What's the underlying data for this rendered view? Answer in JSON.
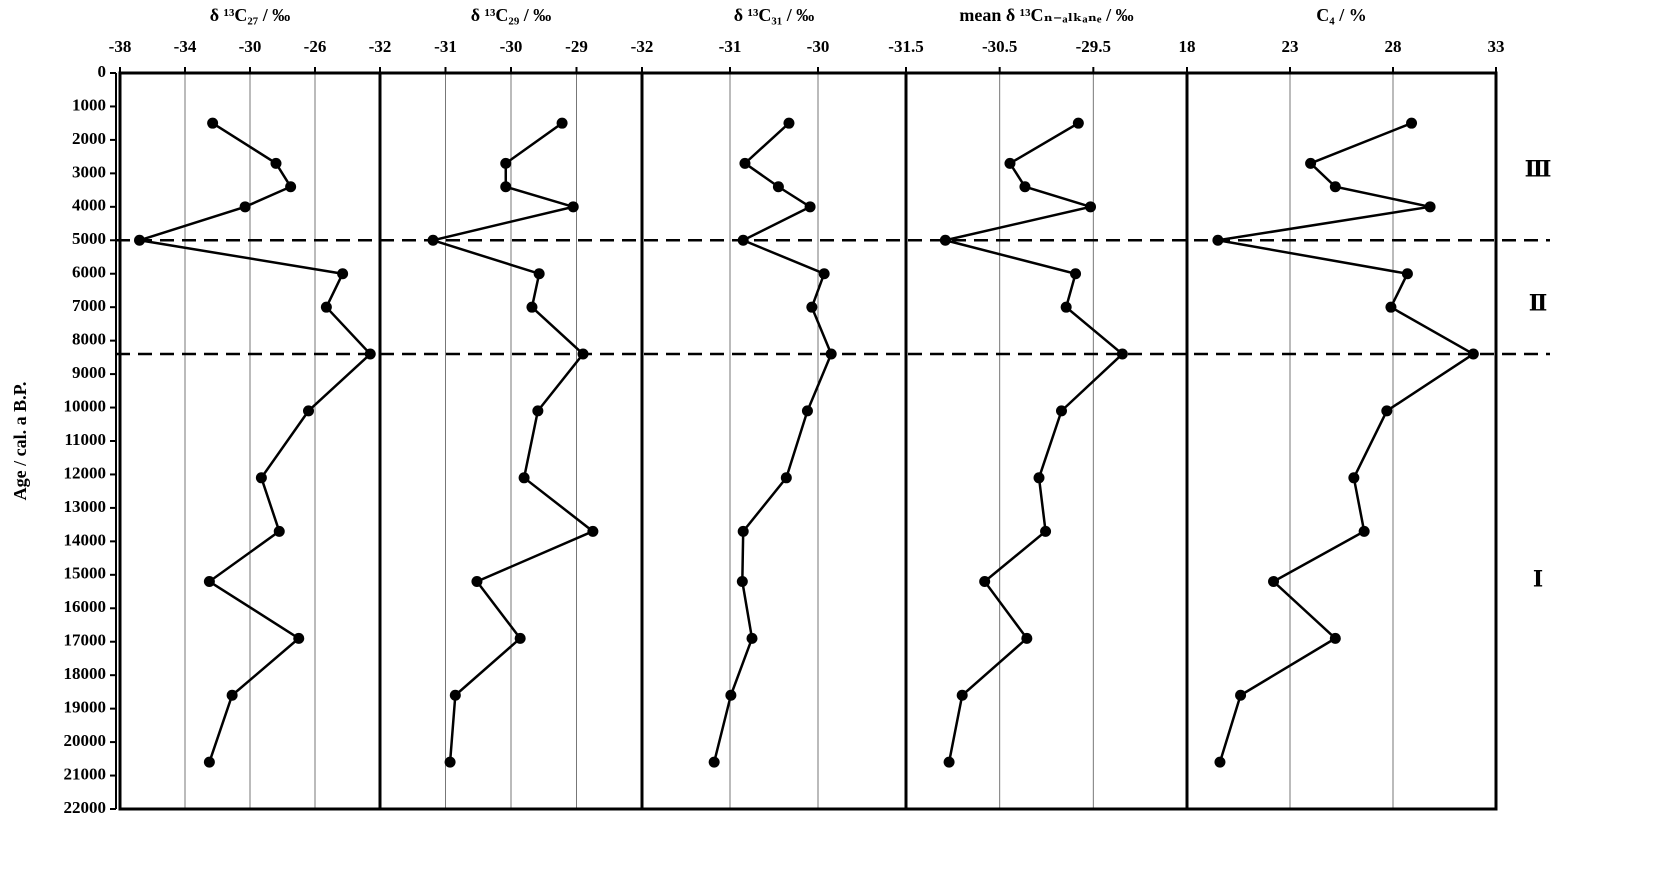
{
  "chart_data": [
    {
      "type": "line",
      "title": "δ ¹³C₂₇ / ‰",
      "ylabel": "Age / cal. a B.P.",
      "ylim": [
        0,
        22000
      ],
      "yticks": [
        0,
        1000,
        2000,
        3000,
        4000,
        5000,
        6000,
        7000,
        8000,
        9000,
        10000,
        11000,
        12000,
        13000,
        14000,
        15000,
        16000,
        17000,
        18000,
        19000,
        20000,
        21000,
        22000
      ],
      "hlines": [
        5000,
        8400
      ],
      "xlim": [
        -38,
        -22
      ],
      "xticks": [
        -38,
        -34,
        -30,
        -26
      ],
      "grid": true,
      "color": "#000000",
      "y": [
        1500,
        2700,
        3400,
        4000,
        5000,
        6000,
        7000,
        8400,
        10100,
        12100,
        13700,
        15200,
        16900,
        18600,
        20600
      ],
      "values": [
        -32.3,
        -28.4,
        -27.5,
        -30.3,
        -36.8,
        -24.3,
        -25.3,
        -22.6,
        -26.4,
        -29.3,
        -28.2,
        -32.5,
        -27.0,
        -31.1,
        -32.5
      ]
    },
    {
      "type": "line",
      "title": "δ ¹³C₂₉ / ‰",
      "xlim": [
        -32,
        -28
      ],
      "xticks": [
        -32,
        -31,
        -30,
        -29
      ],
      "grid": true,
      "color": "#000000",
      "y": [
        1500,
        2700,
        3400,
        4000,
        5000,
        6000,
        7000,
        8400,
        10100,
        12100,
        13700,
        15200,
        16900,
        18600,
        20600
      ],
      "values": [
        -29.22,
        -30.08,
        -30.08,
        -29.05,
        -31.19,
        -29.57,
        -29.68,
        -28.9,
        -29.59,
        -29.8,
        -28.75,
        -30.52,
        -29.86,
        -30.85,
        -30.93
      ]
    },
    {
      "type": "line",
      "title": "δ ¹³C₃₁ / ‰",
      "xlim": [
        -32,
        -29
      ],
      "xticks": [
        -32,
        -31,
        -30
      ],
      "grid": true,
      "color": "#000000",
      "y": [
        1500,
        2700,
        3400,
        4000,
        5000,
        6000,
        7000,
        8400,
        10100,
        12100,
        13700,
        15200,
        16900,
        18600,
        20600
      ],
      "values": [
        -30.33,
        -30.83,
        -30.45,
        -30.09,
        -30.85,
        -29.93,
        -30.07,
        -29.85,
        -30.12,
        -30.36,
        -30.85,
        -30.86,
        -30.75,
        -30.99,
        -31.18
      ]
    },
    {
      "type": "line",
      "title": "mean δ ¹³Cₙ₋ₐₗₖₐₙₑ / ‰",
      "xlim": [
        -31.5,
        -28.5
      ],
      "xticks": [
        -31.5,
        -30.5,
        -29.5
      ],
      "grid": true,
      "color": "#000000",
      "y": [
        1500,
        2700,
        3400,
        4000,
        5000,
        6000,
        7000,
        8400,
        10100,
        12100,
        13700,
        15200,
        16900,
        18600,
        20600
      ],
      "values": [
        -29.66,
        -30.39,
        -30.23,
        -29.53,
        -31.08,
        -29.69,
        -29.79,
        -29.19,
        -29.84,
        -30.08,
        -30.01,
        -30.66,
        -30.21,
        -30.9,
        -31.04
      ]
    },
    {
      "type": "line",
      "title": "C₄ / %",
      "xlim": [
        18,
        33
      ],
      "xticks": [
        18,
        23,
        28,
        33
      ],
      "grid": true,
      "color": "#000000",
      "y": [
        1500,
        2700,
        3400,
        4000,
        5000,
        6000,
        7000,
        8400,
        10100,
        12100,
        13700,
        15200,
        16900,
        18600,
        20600
      ],
      "values": [
        28.9,
        24.0,
        25.2,
        29.8,
        19.5,
        28.7,
        27.9,
        31.9,
        27.7,
        26.1,
        26.6,
        22.2,
        25.2,
        20.6,
        19.6
      ],
      "annotations": [
        {
          "text": "Ⅲ",
          "y": 2950
        },
        {
          "text": "Ⅱ",
          "y": 6950
        },
        {
          "text": "Ⅰ",
          "y": 15200
        }
      ]
    }
  ]
}
